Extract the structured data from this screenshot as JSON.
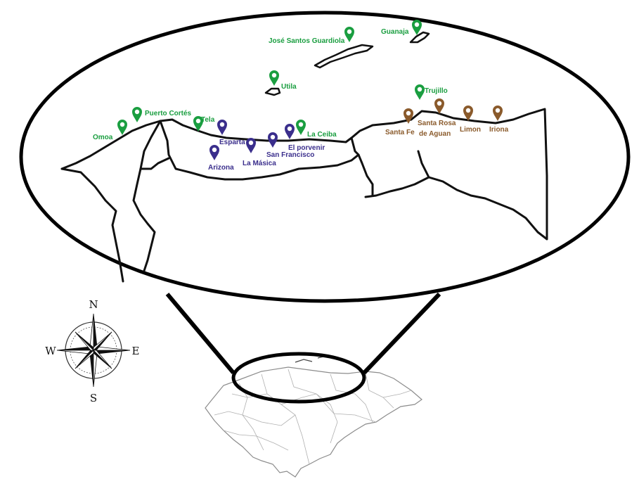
{
  "colors": {
    "green": "#1a9e40",
    "blue": "#3a2e8c",
    "brown": "#8a5a2b",
    "outline": "#111111",
    "detail": "#9a9a9a"
  },
  "compass": {
    "north": "N",
    "south": "S",
    "west": "W",
    "east": "E"
  },
  "places": [
    {
      "name": "José Santos Guardiola",
      "group": "green"
    },
    {
      "name": "Guanaja",
      "group": "green"
    },
    {
      "name": "Utila",
      "group": "green"
    },
    {
      "name": "Trujillo",
      "group": "green"
    },
    {
      "name": "Omoa",
      "group": "green"
    },
    {
      "name": "Puerto Cortés",
      "group": "green"
    },
    {
      "name": "Tela",
      "group": "green"
    },
    {
      "name": "La Ceiba",
      "group": "green"
    },
    {
      "name": "Esparta",
      "group": "blue"
    },
    {
      "name": "Arizona",
      "group": "blue"
    },
    {
      "name": "La Másica",
      "group": "blue"
    },
    {
      "name": "San Francisco",
      "group": "blue"
    },
    {
      "name": "El porvenir",
      "group": "blue"
    },
    {
      "name": "Santa Fe",
      "group": "brown"
    },
    {
      "name": "Santa Rosa de Aguan",
      "group": "brown"
    },
    {
      "name": "Limon",
      "group": "brown"
    },
    {
      "name": "Iriona",
      "group": "brown"
    }
  ]
}
